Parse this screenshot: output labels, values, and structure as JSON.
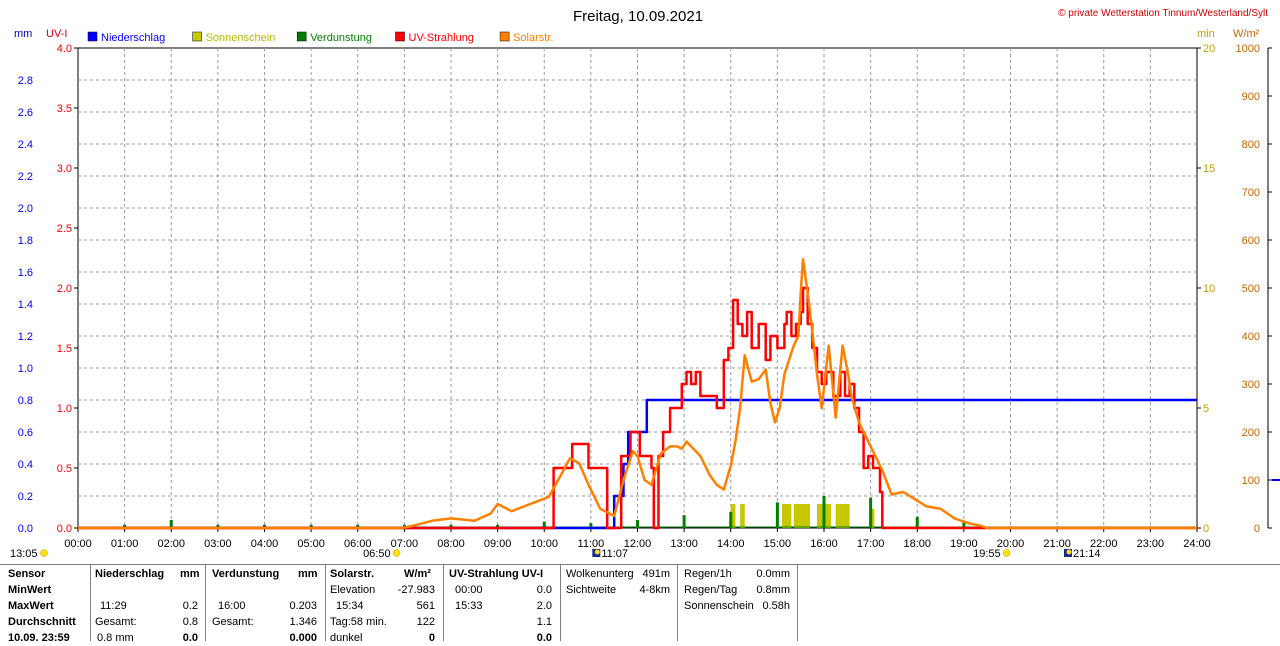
{
  "header": {
    "title": "Freitag, 10.09.2021",
    "copyright": "© private Wetterstation Tinnum/Westerland/Sylt"
  },
  "axes": {
    "mm_label": "mm",
    "uv_label": "UV-I",
    "min_label": "min",
    "wm2_label": "W/m²"
  },
  "legend": [
    {
      "label": "Niederschlag",
      "color": "#0000ff"
    },
    {
      "label": "Sonnenschein",
      "color": "#c8c800"
    },
    {
      "label": "Verdunstung",
      "color": "#008000"
    },
    {
      "label": "UV-Strahlung",
      "color": "#ff0000"
    },
    {
      "label": "Solarstr.",
      "color": "#ff8000"
    }
  ],
  "sun": {
    "date_time": "13:05",
    "sunrise": "06:50",
    "sunset": "19:55",
    "moonrise": "11:07",
    "moonset": "21:14"
  },
  "chart_data": {
    "type": "line",
    "x_range": [
      "00:00",
      "24:00"
    ],
    "x_ticks": [
      "00:00",
      "01:00",
      "02:00",
      "03:00",
      "04:00",
      "05:00",
      "06:00",
      "07:00",
      "08:00",
      "09:00",
      "10:00",
      "11:00",
      "12:00",
      "13:00",
      "14:00",
      "15:00",
      "16:00",
      "17:00",
      "18:00",
      "19:00",
      "20:00",
      "21:00",
      "22:00",
      "23:00",
      "24:00"
    ],
    "axes": {
      "mm": {
        "range": [
          0,
          3.0
        ],
        "ticks": [
          "0.0",
          "0.2",
          "0.4",
          "0.6",
          "0.8",
          "1.0",
          "1.2",
          "1.4",
          "1.6",
          "1.8",
          "2.0",
          "2.2",
          "2.4",
          "2.6",
          "2.8"
        ],
        "color": "#0000ff"
      },
      "uv": {
        "range": [
          0,
          4.0
        ],
        "ticks": [
          "0.0",
          "0.5",
          "1.0",
          "1.5",
          "2.0",
          "2.5",
          "3.0",
          "3.5",
          "4.0"
        ],
        "color": "#ff0000"
      },
      "min": {
        "range": [
          0,
          20
        ],
        "ticks": [
          "0",
          "5",
          "10",
          "15",
          "20"
        ],
        "color": "#c8a000"
      },
      "wm2": {
        "range": [
          0,
          1000
        ],
        "ticks": [
          "0",
          "100",
          "200",
          "300",
          "400",
          "500",
          "600",
          "700",
          "800",
          "900",
          "1000"
        ],
        "color": "#c86400"
      }
    },
    "grid": true,
    "series": [
      {
        "name": "Niederschlag",
        "axis": "mm",
        "color": "#0000ff",
        "step": true,
        "points": [
          [
            0,
            0
          ],
          [
            11.45,
            0
          ],
          [
            11.5,
            0.2
          ],
          [
            11.65,
            0.2
          ],
          [
            11.7,
            0.4
          ],
          [
            11.8,
            0.6
          ],
          [
            12.15,
            0.6
          ],
          [
            12.2,
            0.8
          ],
          [
            24,
            0.8
          ]
        ]
      },
      {
        "name": "UV-Strahlung",
        "axis": "uv",
        "color": "#ff0000",
        "step": true,
        "points": [
          [
            0,
            0
          ],
          [
            10.15,
            0
          ],
          [
            10.2,
            0.5
          ],
          [
            10.5,
            0.5
          ],
          [
            10.6,
            0.7
          ],
          [
            10.85,
            0.7
          ],
          [
            10.95,
            0.5
          ],
          [
            11.3,
            0.5
          ],
          [
            11.35,
            0
          ],
          [
            11.6,
            0
          ],
          [
            11.65,
            0.6
          ],
          [
            11.85,
            0.8
          ],
          [
            12.05,
            0.6
          ],
          [
            12.2,
            0.6
          ],
          [
            12.3,
            0.5
          ],
          [
            12.35,
            0
          ],
          [
            12.42,
            0
          ],
          [
            12.45,
            0.6
          ],
          [
            12.55,
            0.8
          ],
          [
            12.7,
            1.0
          ],
          [
            12.85,
            1.0
          ],
          [
            12.95,
            1.2
          ],
          [
            13.05,
            1.3
          ],
          [
            13.15,
            1.2
          ],
          [
            13.25,
            1.3
          ],
          [
            13.35,
            1.1
          ],
          [
            13.5,
            1.1
          ],
          [
            13.7,
            1.0
          ],
          [
            13.8,
            1.0
          ],
          [
            13.85,
            1.4
          ],
          [
            13.95,
            1.5
          ],
          [
            14.05,
            1.9
          ],
          [
            14.15,
            1.7
          ],
          [
            14.25,
            1.6
          ],
          [
            14.35,
            1.8
          ],
          [
            14.45,
            1.5
          ],
          [
            14.55,
            1.5
          ],
          [
            14.6,
            1.7
          ],
          [
            14.75,
            1.4
          ],
          [
            14.85,
            1.6
          ],
          [
            15.0,
            1.5
          ],
          [
            15.15,
            1.7
          ],
          [
            15.2,
            1.8
          ],
          [
            15.3,
            1.6
          ],
          [
            15.4,
            1.7
          ],
          [
            15.5,
            1.8
          ],
          [
            15.55,
            2.0
          ],
          [
            15.65,
            1.7
          ],
          [
            15.75,
            1.5
          ],
          [
            15.85,
            1.3
          ],
          [
            15.95,
            1.2
          ],
          [
            16.05,
            1.3
          ],
          [
            16.2,
            1.1
          ],
          [
            16.35,
            1.3
          ],
          [
            16.45,
            1.1
          ],
          [
            16.55,
            1.2
          ],
          [
            16.65,
            1.0
          ],
          [
            16.75,
            0.8
          ],
          [
            16.85,
            0.5
          ],
          [
            16.95,
            0.6
          ],
          [
            17.05,
            0.5
          ],
          [
            17.2,
            0.3
          ],
          [
            17.25,
            0
          ],
          [
            24,
            0
          ]
        ]
      },
      {
        "name": "Solarstr.",
        "axis": "wm2",
        "color": "#ff8000",
        "step": false,
        "points": [
          [
            0,
            0
          ],
          [
            6.95,
            0
          ],
          [
            7.2,
            5
          ],
          [
            7.6,
            15
          ],
          [
            8.0,
            20
          ],
          [
            8.5,
            15
          ],
          [
            8.85,
            30
          ],
          [
            9.0,
            50
          ],
          [
            9.3,
            35
          ],
          [
            9.7,
            50
          ],
          [
            10.1,
            65
          ],
          [
            10.3,
            100
          ],
          [
            10.55,
            145
          ],
          [
            10.75,
            135
          ],
          [
            10.95,
            90
          ],
          [
            11.2,
            40
          ],
          [
            11.5,
            25
          ],
          [
            11.7,
            100
          ],
          [
            11.9,
            160
          ],
          [
            12.0,
            150
          ],
          [
            12.15,
            100
          ],
          [
            12.3,
            90
          ],
          [
            12.5,
            155
          ],
          [
            12.7,
            170
          ],
          [
            12.85,
            170
          ],
          [
            12.95,
            165
          ],
          [
            13.05,
            180
          ],
          [
            13.2,
            165
          ],
          [
            13.35,
            150
          ],
          [
            13.55,
            110
          ],
          [
            13.7,
            90
          ],
          [
            13.85,
            80
          ],
          [
            14.0,
            130
          ],
          [
            14.1,
            180
          ],
          [
            14.2,
            250
          ],
          [
            14.3,
            360
          ],
          [
            14.45,
            305
          ],
          [
            14.6,
            310
          ],
          [
            14.75,
            330
          ],
          [
            14.85,
            260
          ],
          [
            14.95,
            220
          ],
          [
            15.05,
            250
          ],
          [
            15.15,
            320
          ],
          [
            15.25,
            350
          ],
          [
            15.35,
            380
          ],
          [
            15.45,
            400
          ],
          [
            15.5,
            490
          ],
          [
            15.55,
            560
          ],
          [
            15.65,
            490
          ],
          [
            15.75,
            410
          ],
          [
            15.85,
            320
          ],
          [
            15.95,
            250
          ],
          [
            16.1,
            380
          ],
          [
            16.25,
            230
          ],
          [
            16.4,
            380
          ],
          [
            16.5,
            330
          ],
          [
            16.6,
            270
          ],
          [
            16.75,
            220
          ],
          [
            16.9,
            190
          ],
          [
            17.05,
            160
          ],
          [
            17.25,
            120
          ],
          [
            17.45,
            70
          ],
          [
            17.7,
            75
          ],
          [
            17.95,
            60
          ],
          [
            18.2,
            45
          ],
          [
            18.5,
            40
          ],
          [
            18.8,
            20
          ],
          [
            19.1,
            10
          ],
          [
            19.35,
            5
          ],
          [
            19.5,
            0
          ],
          [
            24,
            0
          ]
        ]
      }
    ],
    "sunshine_bars_min": [
      {
        "from": 14.0,
        "to": 14.1,
        "min": 1.0
      },
      {
        "from": 14.2,
        "to": 14.3,
        "min": 1.0
      },
      {
        "from": 15.1,
        "to": 15.3,
        "min": 1.0
      },
      {
        "from": 15.35,
        "to": 15.7,
        "min": 1.0
      },
      {
        "from": 15.85,
        "to": 16.15,
        "min": 1.0
      },
      {
        "from": 16.25,
        "to": 16.55,
        "min": 1.0
      },
      {
        "from": 16.98,
        "to": 17.08,
        "min": 0.8
      }
    ],
    "evaporation_ticks_mm": [
      {
        "t": 1.0,
        "v": 0.02
      },
      {
        "t": 2.0,
        "v": 0.05
      },
      {
        "t": 3.0,
        "v": 0.02
      },
      {
        "t": 4.0,
        "v": 0.02
      },
      {
        "t": 5.0,
        "v": 0.02
      },
      {
        "t": 6.0,
        "v": 0.02
      },
      {
        "t": 7.0,
        "v": 0.02
      },
      {
        "t": 8.0,
        "v": 0.02
      },
      {
        "t": 9.0,
        "v": 0.02
      },
      {
        "t": 10.0,
        "v": 0.04
      },
      {
        "t": 11.0,
        "v": 0.03
      },
      {
        "t": 12.0,
        "v": 0.05
      },
      {
        "t": 13.0,
        "v": 0.08
      },
      {
        "t": 14.0,
        "v": 0.1
      },
      {
        "t": 15.0,
        "v": 0.16
      },
      {
        "t": 16.0,
        "v": 0.2
      },
      {
        "t": 17.0,
        "v": 0.19
      },
      {
        "t": 18.0,
        "v": 0.07
      },
      {
        "t": 19.0,
        "v": 0.04
      },
      {
        "t": 20.0,
        "v": 0.01
      },
      {
        "t": 21.0,
        "v": 0.01
      },
      {
        "t": 22.0,
        "v": 0.01
      },
      {
        "t": 23.0,
        "v": 0.01
      }
    ]
  },
  "table": {
    "row_labels": [
      "Sensor",
      "MinWert",
      "MaxWert",
      "Durchschnitt",
      "10.09. 23:59"
    ],
    "niederschlag": {
      "header": "Niederschlag",
      "unit": "mm",
      "max_time": "11:29",
      "max_value": "0.2",
      "gesamt_label": "Gesamt:",
      "gesamt_value": "0.8",
      "last_value": "0.8 mm",
      "last_right": "0.0"
    },
    "verdunstung": {
      "header": "Verdunstung",
      "unit": "mm",
      "max_time": "16:00",
      "max_value": "0.203",
      "gesamt_label": "Gesamt:",
      "gesamt_value": "1.346",
      "last_right": "0.000"
    },
    "solar": {
      "header": "Solarstr.",
      "unit": "W/m²",
      "elevation_label": "Elevation",
      "elevation_value": "-27.983",
      "max_time": "15:34",
      "max_value": "561",
      "tag_label": "Tag:58 min.",
      "tag_value": "122",
      "dark_label": "dunkel",
      "dark_value": "0"
    },
    "uv": {
      "header": "UV-Strahlung UV-I",
      "min_time": "00:00",
      "min_value": "0.0",
      "max_time": "15:33",
      "max_value": "2.0",
      "avg_value": "1.1",
      "last_value": "0.0"
    },
    "cloud": {
      "base_label": "Wolkenunterg",
      "base_value": "491m",
      "vis_label": "Sichtweite",
      "vis_value": "4-8km"
    },
    "rain": {
      "hour_label": "Regen/1h",
      "hour_value": "0.0mm",
      "day_label": "Regen/Tag",
      "day_value": "0.8mm",
      "sun_label": "Sonnenschein",
      "sun_value": "0.58h"
    }
  }
}
